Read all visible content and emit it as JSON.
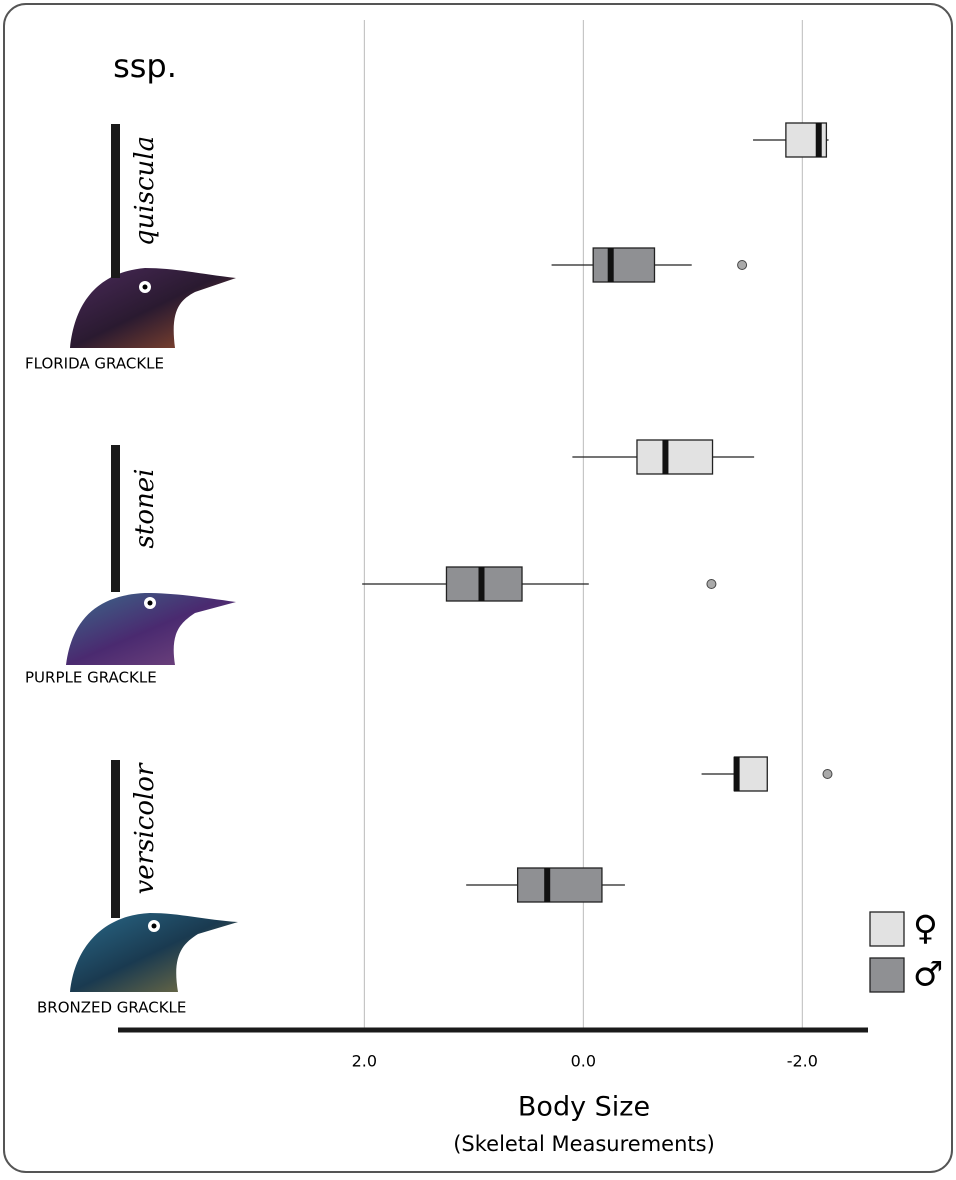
{
  "chart_data": {
    "type": "box",
    "title": "ssp.",
    "x_label": "Body Size",
    "x_sublabel": "(Skeletal Measurements)",
    "categories": [
      "quiscula",
      "stonei",
      "versicolor"
    ],
    "common_names": [
      "FLORIDA GRACKLE",
      "PURPLE GRACKLE",
      "BRONZED GRACKLE"
    ],
    "xlim": [
      4.25,
      -2.6
    ],
    "xticks": [
      {
        "value": 2,
        "label": "2.0"
      },
      {
        "value": 0,
        "label": "0.0"
      },
      {
        "value": -2,
        "label": "-2.0"
      }
    ],
    "grid": true,
    "legend": "lower right",
    "series": [
      {
        "name": "♀",
        "color": "#e2e2e2",
        "whisker_low": [
          -1.55,
          0.1,
          -1.08
        ],
        "q1": [
          -1.85,
          -0.49,
          -1.38
        ],
        "median": [
          -2.15,
          -0.75,
          -1.4
        ],
        "q3": [
          -2.22,
          -1.18,
          -1.68
        ],
        "whisker_high": [
          -2.24,
          -1.56,
          -1.68
        ],
        "outliers": [
          [],
          [],
          [
            -2.23
          ]
        ]
      },
      {
        "name": "♂",
        "color": "#8f9093",
        "whisker_low": [
          0.29,
          2.02,
          1.07
        ],
        "q1": [
          -0.09,
          1.25,
          0.6
        ],
        "median": [
          -0.25,
          0.93,
          0.33
        ],
        "q3": [
          -0.65,
          0.56,
          -0.17
        ],
        "whisker_high": [
          -0.99,
          -0.05,
          -0.38
        ],
        "outliers": [
          [
            -1.45
          ],
          [
            -1.17
          ],
          []
        ]
      }
    ]
  }
}
